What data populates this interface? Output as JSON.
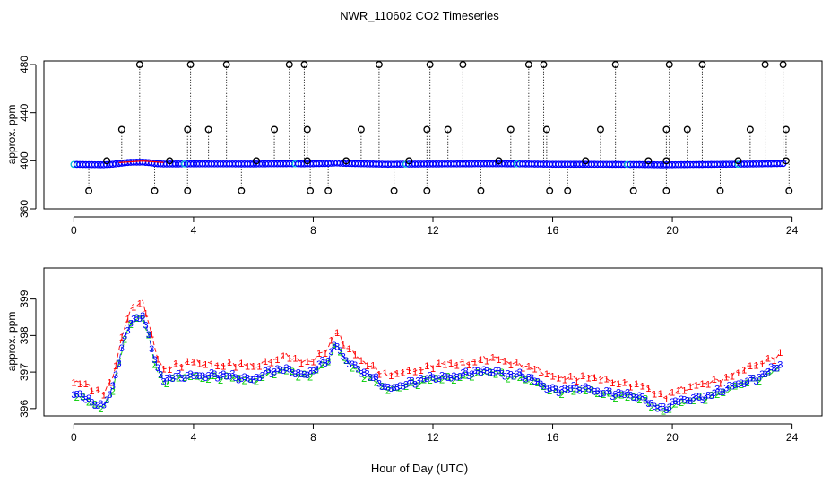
{
  "chart_data": {
    "title": "NWR_110602  CO2 Timeseries",
    "xlabel": "Hour of Day (UTC)",
    "panels": [
      {
        "type": "scatter",
        "ylabel": "approx. ppm",
        "xlim": [
          -1,
          25
        ],
        "ylim": [
          360,
          483
        ],
        "xticks": [
          0,
          4,
          8,
          12,
          16,
          20,
          24
        ],
        "yticks": [
          360,
          400,
          440,
          480
        ],
        "baseline": 397.5,
        "outliers_high": [
          {
            "x": 1.6,
            "y": 426
          },
          {
            "x": 2.2,
            "y": 480
          },
          {
            "x": 3.8,
            "y": 426
          },
          {
            "x": 3.9,
            "y": 480
          },
          {
            "x": 4.5,
            "y": 426
          },
          {
            "x": 5.1,
            "y": 480
          },
          {
            "x": 6.7,
            "y": 426
          },
          {
            "x": 7.2,
            "y": 480
          },
          {
            "x": 7.7,
            "y": 480
          },
          {
            "x": 7.8,
            "y": 426
          },
          {
            "x": 9.6,
            "y": 426
          },
          {
            "x": 10.2,
            "y": 480
          },
          {
            "x": 11.8,
            "y": 426
          },
          {
            "x": 11.9,
            "y": 480
          },
          {
            "x": 12.5,
            "y": 426
          },
          {
            "x": 13.0,
            "y": 480
          },
          {
            "x": 14.6,
            "y": 426
          },
          {
            "x": 15.2,
            "y": 480
          },
          {
            "x": 15.7,
            "y": 480
          },
          {
            "x": 15.8,
            "y": 426
          },
          {
            "x": 17.6,
            "y": 426
          },
          {
            "x": 18.1,
            "y": 480
          },
          {
            "x": 19.8,
            "y": 426
          },
          {
            "x": 19.9,
            "y": 480
          },
          {
            "x": 20.5,
            "y": 426
          },
          {
            "x": 21.0,
            "y": 480
          },
          {
            "x": 22.6,
            "y": 426
          },
          {
            "x": 23.1,
            "y": 480
          },
          {
            "x": 23.7,
            "y": 480
          },
          {
            "x": 23.8,
            "y": 426
          }
        ],
        "outliers_low": [
          {
            "x": 0.5,
            "y": 375
          },
          {
            "x": 2.7,
            "y": 375
          },
          {
            "x": 3.8,
            "y": 375
          },
          {
            "x": 5.6,
            "y": 375
          },
          {
            "x": 7.9,
            "y": 375
          },
          {
            "x": 8.5,
            "y": 375
          },
          {
            "x": 10.7,
            "y": 375
          },
          {
            "x": 11.8,
            "y": 375
          },
          {
            "x": 13.6,
            "y": 375
          },
          {
            "x": 15.9,
            "y": 375
          },
          {
            "x": 16.5,
            "y": 375
          },
          {
            "x": 18.7,
            "y": 375
          },
          {
            "x": 19.8,
            "y": 375
          },
          {
            "x": 21.6,
            "y": 375
          },
          {
            "x": 23.9,
            "y": 375
          }
        ],
        "outliers_mid": [
          {
            "x": 1.1,
            "y": 400
          },
          {
            "x": 3.2,
            "y": 400
          },
          {
            "x": 6.1,
            "y": 400
          },
          {
            "x": 7.8,
            "y": 400
          },
          {
            "x": 9.1,
            "y": 400
          },
          {
            "x": 11.2,
            "y": 400
          },
          {
            "x": 14.2,
            "y": 400
          },
          {
            "x": 17.1,
            "y": 400
          },
          {
            "x": 19.2,
            "y": 400
          },
          {
            "x": 19.8,
            "y": 400
          },
          {
            "x": 22.2,
            "y": 400
          },
          {
            "x": 23.8,
            "y": 400
          }
        ]
      },
      {
        "type": "scatter",
        "ylabel": "approx. ppm",
        "xlim": [
          -1,
          25
        ],
        "ylim": [
          395.8,
          399.85
        ],
        "xticks": [
          0,
          4,
          8,
          12,
          16,
          20,
          24
        ],
        "yticks": [
          396,
          397,
          398,
          399
        ],
        "series": [
          {
            "name": "1",
            "color": "#ff0000",
            "offset": 0.32
          },
          {
            "name": "2",
            "color": "#00cc00",
            "offset": -0.06
          },
          {
            "name": "3",
            "color": "#0000ff",
            "offset": 0.0
          }
        ],
        "x": [
          0,
          0.5,
          1.0,
          1.3,
          1.6,
          1.85,
          2.1,
          2.3,
          2.5,
          2.75,
          3.0,
          4.0,
          5.0,
          6.0,
          6.5,
          7.2,
          7.6,
          8.0,
          8.5,
          8.75,
          9.0,
          9.5,
          10.5,
          11.0,
          12.0,
          13.0,
          14.0,
          15.0,
          16.0,
          17.0,
          18.0,
          19.0,
          19.7,
          20.0,
          21.0,
          22.0,
          23.0,
          23.7
        ],
        "y": [
          396.45,
          396.25,
          396.1,
          396.6,
          397.6,
          398.35,
          398.5,
          398.55,
          398.1,
          397.15,
          396.8,
          396.95,
          396.9,
          396.85,
          397.0,
          397.1,
          396.95,
          397.05,
          397.35,
          397.8,
          397.45,
          397.1,
          396.55,
          396.7,
          396.85,
          396.95,
          397.05,
          396.9,
          396.55,
          396.55,
          396.45,
          396.3,
          396.0,
          396.15,
          396.35,
          396.6,
          396.95,
          397.25
        ]
      }
    ]
  }
}
